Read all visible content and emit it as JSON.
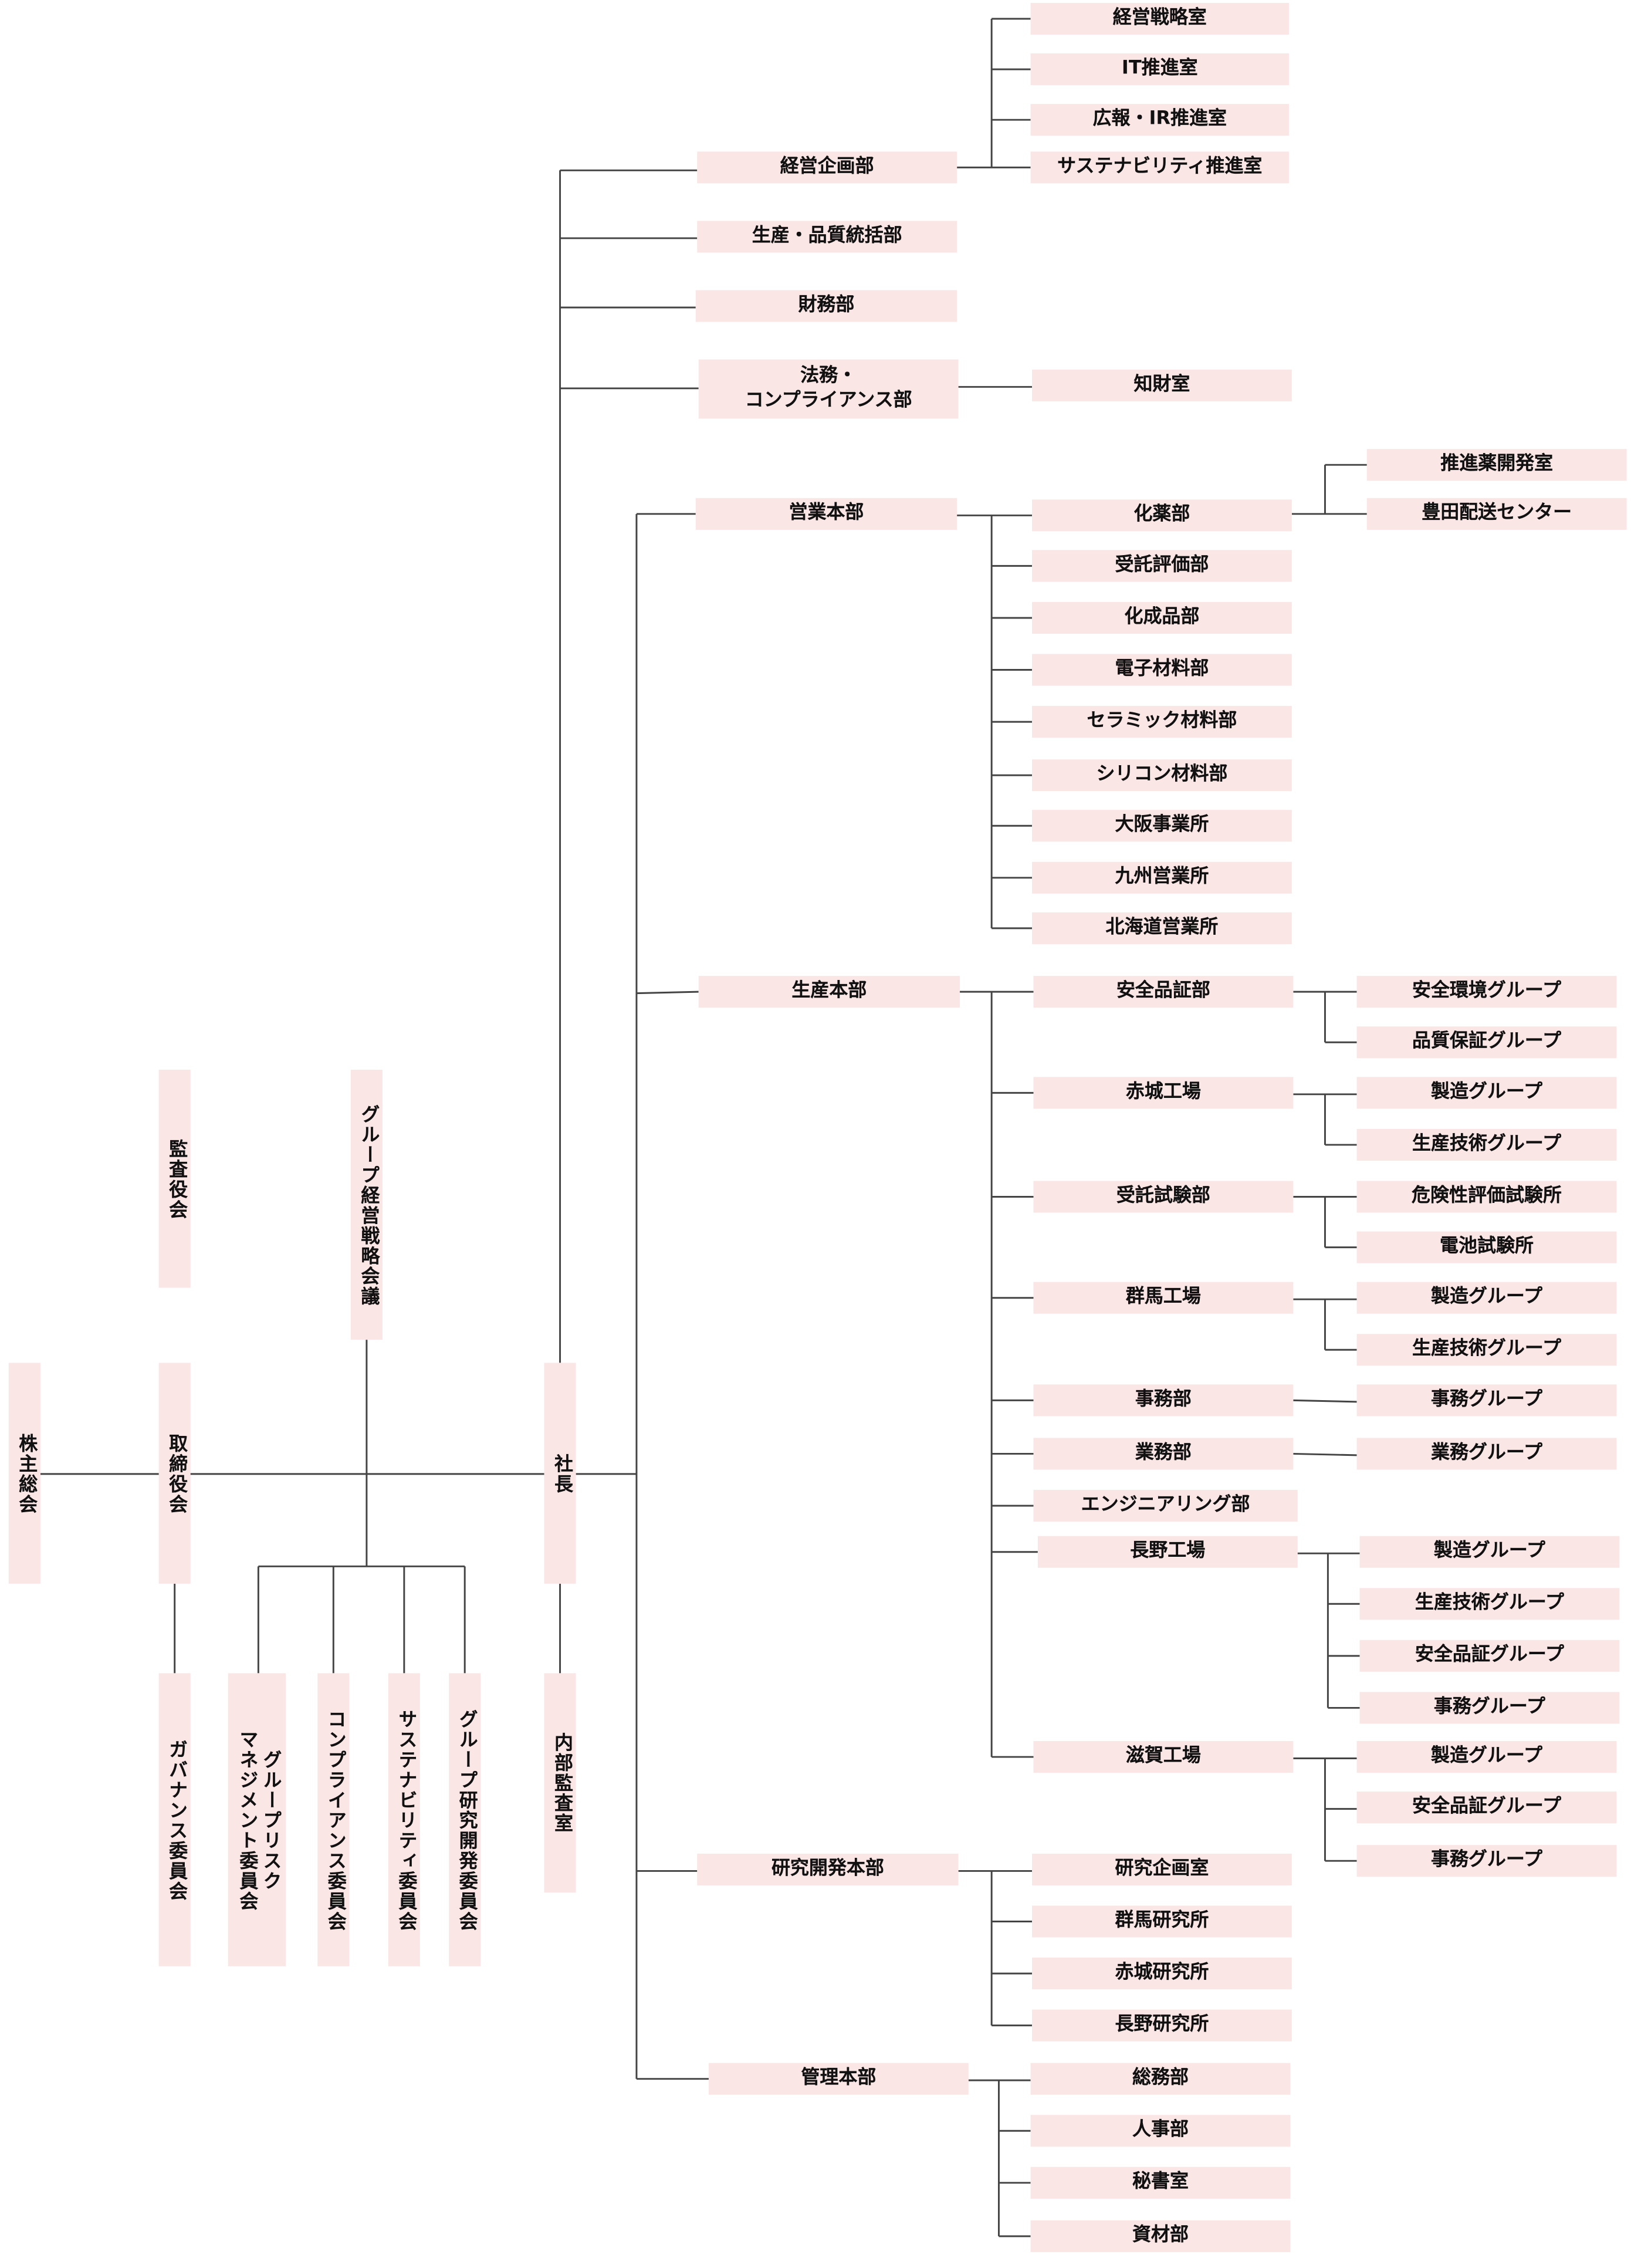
{
  "nodes": {
    "shareholders": "株主総会",
    "board": "取締役会",
    "auditors": "監査役会",
    "group_strategy": "グループ経営戦略会議",
    "governance_cmte": "ガバナンス委員会",
    "risk_cmte": "グループリスク\nマネジメント委員会",
    "compliance_cmte": "コンプライアンス委員会",
    "sustainability_cmte": "サステナビリティ委員会",
    "rd_cmte": "グループ研究開発委員会",
    "president": "社長",
    "internal_audit": "内部監査室",
    "corp_planning": "経営企画部",
    "strategy_office": "経営戦略室",
    "it_office": "IT推進室",
    "pr_ir_office": "広報・IR推進室",
    "sustainability_office": "サステナビリティ推進室",
    "prod_quality": "生産・品質統括部",
    "finance": "財務部",
    "legal": "法務・\nコンプライアンス部",
    "ip_office": "知財室",
    "sales_hq": "営業本部",
    "explosives": "化薬部",
    "propellant_dev": "推進薬開発室",
    "toyota_delivery": "豊田配送センター",
    "contract_eval": "受託評価部",
    "chemicals": "化成品部",
    "electronic_mat": "電子材料部",
    "ceramic_mat": "セラミック材料部",
    "silicon_mat": "シリコン材料部",
    "osaka_office": "大阪事業所",
    "kyushu_office": "九州営業所",
    "hokkaido_office": "北海道営業所",
    "production_hq": "生産本部",
    "safety_qa": "安全品証部",
    "safety_env_grp": "安全環境グループ",
    "qa_grp": "品質保証グループ",
    "akagi_plant": "赤城工場",
    "akagi_mfg": "製造グループ",
    "akagi_tech": "生産技術グループ",
    "contract_test": "受託試験部",
    "hazard_lab": "危険性評価試験所",
    "battery_lab": "電池試験所",
    "gunma_plant": "群馬工場",
    "gunma_mfg": "製造グループ",
    "gunma_tech": "生産技術グループ",
    "admin_dept": "事務部",
    "admin_grp": "事務グループ",
    "operations": "業務部",
    "operations_grp": "業務グループ",
    "engineering": "エンジニアリング部",
    "nagano_plant": "長野工場",
    "nagano_mfg": "製造グループ",
    "nagano_tech": "生産技術グループ",
    "nagano_qa": "安全品証グループ",
    "nagano_admin": "事務グループ",
    "shiga_plant": "滋賀工場",
    "shiga_mfg": "製造グループ",
    "shiga_qa": "安全品証グループ",
    "shiga_admin": "事務グループ",
    "rd_hq": "研究開発本部",
    "research_planning": "研究企画室",
    "gunma_lab": "群馬研究所",
    "akagi_lab": "赤城研究所",
    "nagano_lab": "長野研究所",
    "admin_hq": "管理本部",
    "general_affairs": "総務部",
    "hr": "人事部",
    "secretariat": "秘書室",
    "materials": "資材部"
  },
  "colors": {
    "box": "#fbe6e6",
    "line": "#444444",
    "text": "#111111"
  }
}
